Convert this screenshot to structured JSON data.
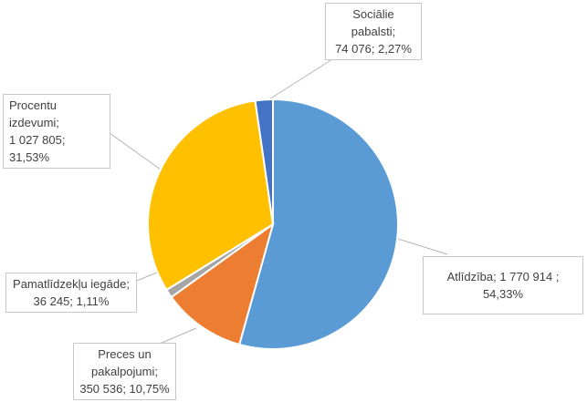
{
  "chart_data": {
    "type": "pie",
    "title": "",
    "slices": [
      {
        "label": "Atlīdzība",
        "value": 1770914,
        "value_text": "1 770 914 ",
        "percent": 54.33,
        "percent_text": "54,33%",
        "color": "#5B9BD5"
      },
      {
        "label": "Preces un pakalpojumi",
        "label_lines": [
          "Preces un",
          "pakalpojumi;"
        ],
        "value": 350536,
        "value_text": "350 536",
        "percent": 10.75,
        "percent_text": "10,75%",
        "color": "#ED7D31"
      },
      {
        "label": "Pamatlīdzekļu iegāde",
        "value": 36245,
        "value_text": "36 245",
        "percent": 1.11,
        "percent_text": "1,11%",
        "color": "#A5A5A5"
      },
      {
        "label": "Procentu izdevumi",
        "value": 1027805,
        "value_text": "1 027 805",
        "percent": 31.53,
        "percent_text": "31,53%",
        "color": "#FFC000"
      },
      {
        "label": "Sociālie pabalsti",
        "value": 74076,
        "value_text": "74 076",
        "percent": 2.27,
        "percent_text": "2,27%",
        "color": "#4472C4"
      }
    ],
    "data_labels": {
      "atlidziba": "Atlīdzība; 1 770 914 ; 54,33%",
      "preces_1": "Preces un",
      "preces_2": "pakalpojumi;",
      "preces_3": "350 536; 10,75%",
      "pamat_1": "Pamatlīdzekļu iegāde;",
      "pamat_2": "36 245; 1,11%",
      "procentu_1": "Procentu izdevumi;",
      "procentu_2": "1 027 805; 31,53%",
      "social_1": "Sociālie pabalsti;",
      "social_2": "74 076; 2,27%"
    },
    "legend": "none"
  }
}
